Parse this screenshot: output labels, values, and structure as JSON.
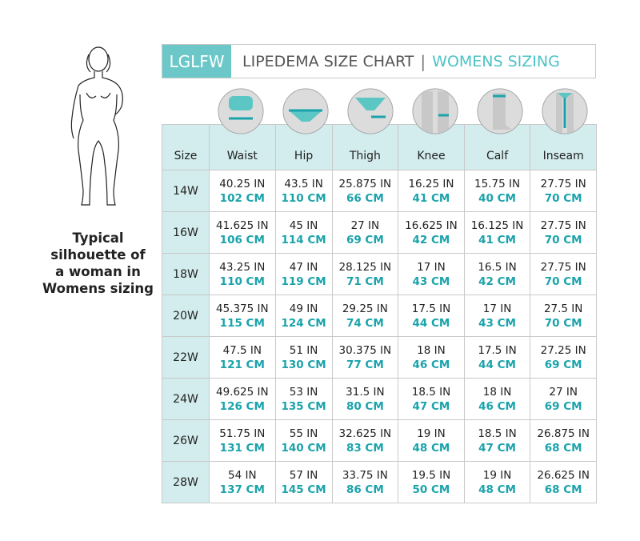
{
  "header": {
    "brand": "LGLFW",
    "title": "LIPEDEMA SIZE CHART",
    "separator": "|",
    "subtitle": "WOMENS SIZING"
  },
  "caption": [
    "Typical",
    "silhouette of",
    "a woman in",
    "Womens sizing"
  ],
  "colors": {
    "accent": "#1aa3ab",
    "brand_bg": "#6cc8c8",
    "header_bg": "#d3eced"
  },
  "columns": [
    "Size",
    "Waist",
    "Hip",
    "Thigh",
    "Knee",
    "Calf",
    "Inseam"
  ],
  "column_icons": [
    "waist-measure-icon",
    "hip-measure-icon",
    "thigh-measure-icon",
    "knee-measure-icon",
    "calf-measure-icon",
    "inseam-measure-icon"
  ],
  "rows": [
    {
      "size": "14W",
      "cells": [
        [
          "40.25 IN",
          "102 CM"
        ],
        [
          "43.5 IN",
          "110 CM"
        ],
        [
          "25.875 IN",
          "66 CM"
        ],
        [
          "16.25 IN",
          "41 CM"
        ],
        [
          "15.75 IN",
          "40 CM"
        ],
        [
          "27.75 IN",
          "70 CM"
        ]
      ]
    },
    {
      "size": "16W",
      "cells": [
        [
          "41.625 IN",
          "106 CM"
        ],
        [
          "45 IN",
          "114 CM"
        ],
        [
          "27 IN",
          "69 CM"
        ],
        [
          "16.625 IN",
          "42 CM"
        ],
        [
          "16.125 IN",
          "41 CM"
        ],
        [
          "27.75 IN",
          "70 CM"
        ]
      ]
    },
    {
      "size": "18W",
      "cells": [
        [
          "43.25 IN",
          "110 CM"
        ],
        [
          "47 IN",
          "119 CM"
        ],
        [
          "28.125 IN",
          "71 CM"
        ],
        [
          "17 IN",
          "43 CM"
        ],
        [
          "16.5 IN",
          "42 CM"
        ],
        [
          "27.75 IN",
          "70 CM"
        ]
      ]
    },
    {
      "size": "20W",
      "cells": [
        [
          "45.375 IN",
          "115 CM"
        ],
        [
          "49 IN",
          "124 CM"
        ],
        [
          "29.25 IN",
          "74 CM"
        ],
        [
          "17.5 IN",
          "44 CM"
        ],
        [
          "17 IN",
          "43 CM"
        ],
        [
          "27.5 IN",
          "70 CM"
        ]
      ]
    },
    {
      "size": "22W",
      "cells": [
        [
          "47.5 IN",
          "121 CM"
        ],
        [
          "51 IN",
          "130 CM"
        ],
        [
          "30.375 IN",
          "77 CM"
        ],
        [
          "18 IN",
          "46 CM"
        ],
        [
          "17.5 IN",
          "44 CM"
        ],
        [
          "27.25 IN",
          "69 CM"
        ]
      ]
    },
    {
      "size": "24W",
      "cells": [
        [
          "49.625 IN",
          "126 CM"
        ],
        [
          "53 IN",
          "135 CM"
        ],
        [
          "31.5 IN",
          "80 CM"
        ],
        [
          "18.5 IN",
          "47 CM"
        ],
        [
          "18 IN",
          "46 CM"
        ],
        [
          "27 IN",
          "69 CM"
        ]
      ]
    },
    {
      "size": "26W",
      "cells": [
        [
          "51.75 IN",
          "131 CM"
        ],
        [
          "55 IN",
          "140 CM"
        ],
        [
          "32.625 IN",
          "83 CM"
        ],
        [
          "19 IN",
          "48 CM"
        ],
        [
          "18.5 IN",
          "47 CM"
        ],
        [
          "26.875 IN",
          "68 CM"
        ]
      ]
    },
    {
      "size": "28W",
      "cells": [
        [
          "54 IN",
          "137 CM"
        ],
        [
          "57 IN",
          "145 CM"
        ],
        [
          "33.75 IN",
          "86 CM"
        ],
        [
          "19.5 IN",
          "50 CM"
        ],
        [
          "19 IN",
          "48 CM"
        ],
        [
          "26.625 IN",
          "68 CM"
        ]
      ]
    }
  ]
}
